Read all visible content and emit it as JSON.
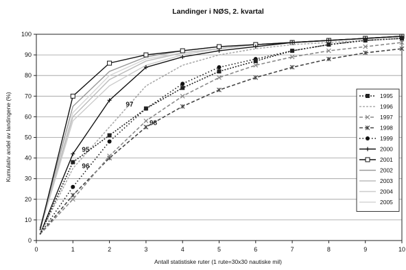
{
  "chart_data": {
    "type": "line",
    "title": "Landinger i NØS, 2. kvartal",
    "xlabel": "Antall statistiske ruter (1 rute=30x30 nautiske mil)",
    "ylabel": "Kumulativ andel av landingene (%)",
    "xlim": [
      0,
      10
    ],
    "ylim": [
      0,
      100
    ],
    "x_ticks": [
      "0",
      "1",
      "2",
      "3",
      "4",
      "5",
      "6",
      "7",
      "8",
      "9",
      "10"
    ],
    "y_ticks": [
      "0",
      "10",
      "20",
      "30",
      "40",
      "50",
      "60",
      "70",
      "80",
      "90",
      "100"
    ],
    "grid": "horizontal",
    "legend_position": "right",
    "series": [
      {
        "name": "1995",
        "color": "#222222",
        "dash": "2,2",
        "marker": "square",
        "x": [
          0.1,
          1,
          2,
          3,
          4,
          5,
          6,
          7,
          8,
          9,
          10
        ],
        "y": [
          3,
          38,
          51,
          64,
          74,
          82,
          87,
          92,
          95,
          97,
          98
        ]
      },
      {
        "name": "1996",
        "color": "#aaaaaa",
        "dash": "3,2",
        "marker": "none",
        "x": [
          0.1,
          1,
          2,
          3,
          4,
          5,
          6,
          7,
          8,
          9,
          10
        ],
        "y": [
          3,
          35,
          55,
          75,
          85,
          90,
          93,
          95,
          96,
          97,
          98
        ]
      },
      {
        "name": "1997",
        "color": "#888888",
        "dash": "5,3",
        "marker": "cross",
        "x": [
          0.1,
          1,
          2,
          3,
          4,
          5,
          6,
          7,
          8,
          9,
          10
        ],
        "y": [
          3,
          20,
          41,
          58,
          70,
          79,
          85,
          89,
          92,
          94,
          96
        ]
      },
      {
        "name": "1998",
        "color": "#444444",
        "dash": "5,3",
        "marker": "star",
        "x": [
          0.1,
          1,
          2,
          3,
          4,
          5,
          6,
          7,
          8,
          9,
          10
        ],
        "y": [
          3,
          22,
          40,
          55,
          65,
          73,
          79,
          84,
          88,
          91,
          93
        ]
      },
      {
        "name": "1999",
        "color": "#111111",
        "dash": "1.5,3",
        "marker": "circle",
        "x": [
          0.1,
          1,
          2,
          3,
          4,
          5,
          6,
          7,
          8,
          9,
          10
        ],
        "y": [
          3,
          26,
          48,
          64,
          76,
          84,
          88,
          92,
          95,
          97,
          98
        ]
      },
      {
        "name": "2000",
        "color": "#111111",
        "dash": "",
        "marker": "plus",
        "x": [
          0.1,
          1,
          2,
          3,
          4,
          5,
          6,
          7,
          8,
          9,
          10
        ],
        "y": [
          3,
          42,
          68,
          84,
          89,
          92,
          94,
          96,
          97,
          98,
          99
        ]
      },
      {
        "name": "2001",
        "color": "#111111",
        "dash": "",
        "marker": "open-square",
        "x": [
          0.1,
          1,
          2,
          3,
          4,
          5,
          6,
          7,
          8,
          9,
          10
        ],
        "y": [
          5,
          70,
          86,
          90,
          92,
          94,
          95,
          96,
          97,
          98,
          99
        ]
      },
      {
        "name": "2002",
        "color": "#999999",
        "dash": "",
        "marker": "none",
        "x": [
          0.1,
          1,
          2,
          3,
          4,
          5,
          6,
          7,
          8,
          9,
          10
        ],
        "y": [
          6,
          65,
          82,
          89,
          92,
          94,
          95,
          96,
          97,
          98,
          99
        ]
      },
      {
        "name": "2003",
        "color": "#bbbbbb",
        "dash": "",
        "marker": "none",
        "x": [
          0.1,
          1,
          2,
          3,
          4,
          5,
          6,
          7,
          8,
          9,
          10
        ],
        "y": [
          6,
          60,
          78,
          87,
          91,
          93,
          95,
          96,
          97,
          98,
          99
        ]
      },
      {
        "name": "2004",
        "color": "#cccccc",
        "dash": "",
        "marker": "none",
        "x": [
          0.1,
          1,
          2,
          3,
          4,
          5,
          6,
          7,
          8,
          9,
          10
        ],
        "y": [
          5,
          58,
          75,
          85,
          90,
          93,
          95,
          96,
          97,
          98,
          99
        ]
      },
      {
        "name": "2005",
        "color": "#d6d6d6",
        "dash": "",
        "marker": "none",
        "x": [
          0.1,
          1,
          2,
          3,
          4,
          5,
          6,
          7,
          8,
          9,
          10
        ],
        "y": [
          5,
          62,
          80,
          88,
          91,
          93,
          95,
          96,
          97,
          98,
          99
        ]
      }
    ],
    "annotations": [
      {
        "text": "95",
        "x": 1.35,
        "y": 43
      },
      {
        "text": "96",
        "x": 1.35,
        "y": 35
      },
      {
        "text": "97",
        "x": 2.55,
        "y": 65
      },
      {
        "text": "98",
        "x": 3.2,
        "y": 56
      }
    ]
  }
}
